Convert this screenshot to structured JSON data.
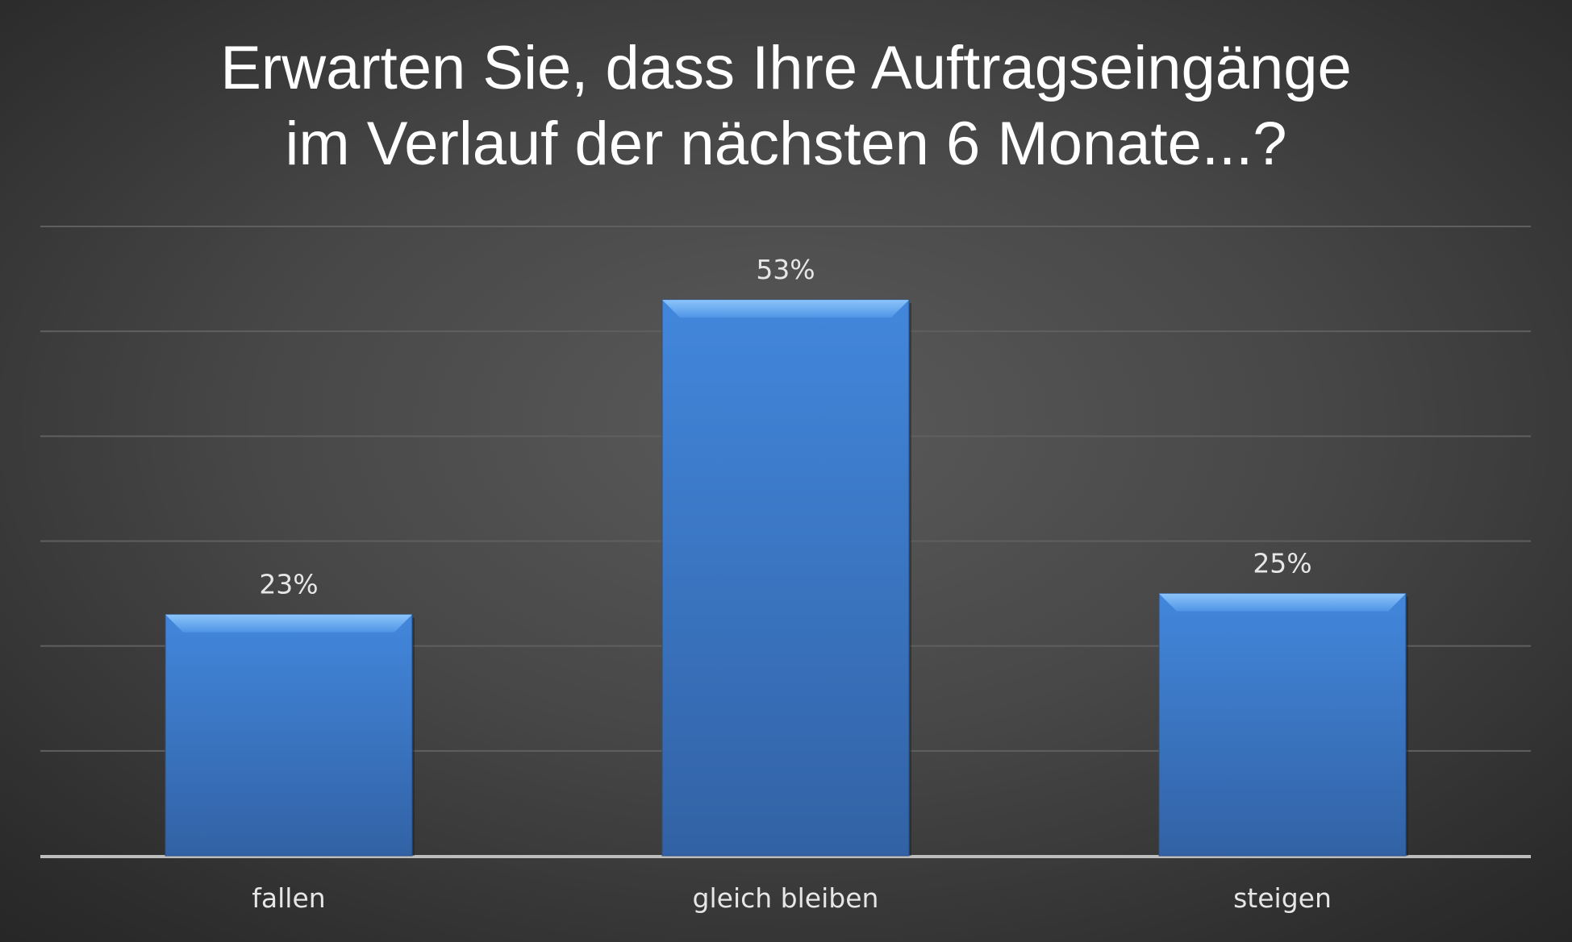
{
  "chart_data": {
    "type": "bar",
    "title": "Erwarten Sie, dass Ihre Auftragseingänge im Verlauf der nächsten 6 Monate...?",
    "title_lines": [
      "Erwarten Sie, dass Ihre Auftragseingänge",
      "im Verlauf der nächsten 6 Monate...?"
    ],
    "categories": [
      "fallen",
      "gleich bleiben",
      "steigen"
    ],
    "values": [
      23,
      53,
      25
    ],
    "value_labels": [
      "23%",
      "53%",
      "25%"
    ],
    "unit": "%",
    "xlabel": "",
    "ylabel": "",
    "ylim": [
      0,
      60
    ],
    "grid_step": 10,
    "grid": true,
    "legend": "none",
    "colors": {
      "bar": "#3f7fd0",
      "bar_dark": "#3263a6",
      "bar_top": "#6fb0f5",
      "grid": "#5f5f5f",
      "axis": "#bdbdbd"
    }
  }
}
